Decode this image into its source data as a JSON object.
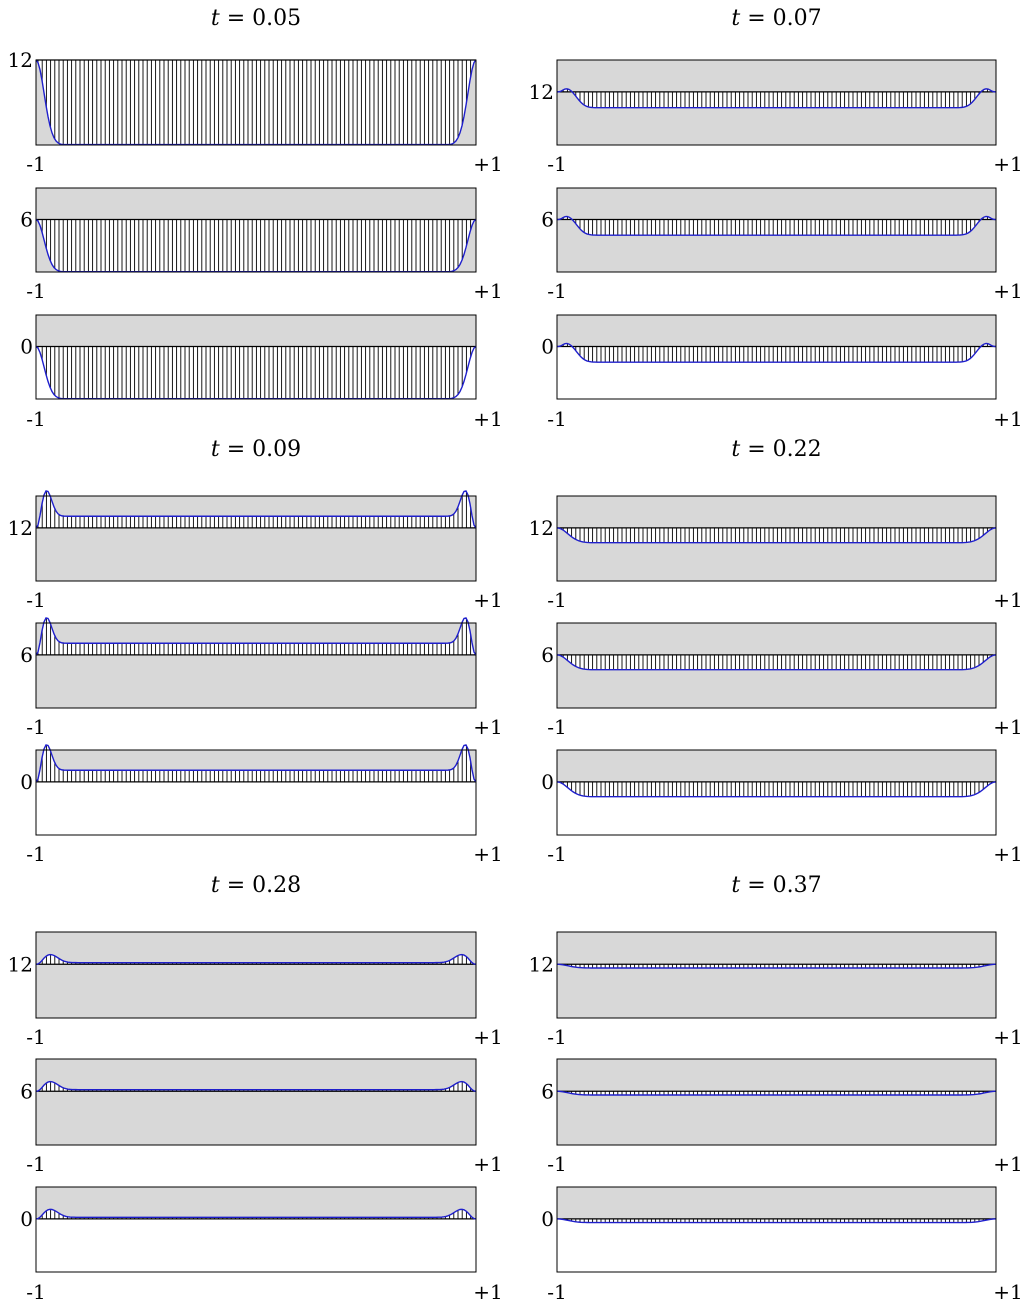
{
  "figure": {
    "var_symbol": "t",
    "var_eq": " = ",
    "x_tick_left": "-1",
    "x_tick_right": "+1"
  },
  "chart_data": [
    {
      "type": "area",
      "title": "t = 0.05",
      "t_label": "0.05",
      "x_range": [
        -1,
        1
      ],
      "edge_width": 0.12,
      "subplots": [
        {
          "baseline": 12,
          "ytick": "12",
          "plateau_offset": -1.0,
          "bump_offset": 0.0,
          "ylim": [
            -1.0,
            0.0
          ]
        },
        {
          "baseline": 6,
          "ytick": "6",
          "plateau_offset": -1.0,
          "bump_offset": 0.0,
          "ylim": [
            -1.0,
            0.6
          ]
        },
        {
          "baseline": 0,
          "ytick": "0",
          "plateau_offset": -1.0,
          "bump_offset": 0.0,
          "ylim": [
            -1.0,
            0.6
          ]
        }
      ]
    },
    {
      "type": "area",
      "title": "t = 0.07",
      "t_label": "0.07",
      "x_range": [
        -1,
        1
      ],
      "edge_width": 0.14,
      "subplots": [
        {
          "baseline": 12,
          "ytick": "12",
          "plateau_offset": -0.3,
          "bump_offset": 0.22,
          "ylim": [
            -1.0,
            0.6
          ]
        },
        {
          "baseline": 6,
          "ytick": "6",
          "plateau_offset": -0.3,
          "bump_offset": 0.22,
          "ylim": [
            -1.0,
            0.6
          ]
        },
        {
          "baseline": 0,
          "ytick": "0",
          "plateau_offset": -0.3,
          "bump_offset": 0.22,
          "ylim": [
            -1.0,
            0.6
          ]
        }
      ]
    },
    {
      "type": "area",
      "title": "t = 0.09",
      "t_label": "0.09",
      "x_range": [
        -1,
        1
      ],
      "edge_width": 0.1,
      "subplots": [
        {
          "baseline": 12,
          "ytick": "12",
          "plateau_offset": 0.22,
          "bump_offset": 0.55,
          "ylim": [
            -1.0,
            0.6
          ]
        },
        {
          "baseline": 6,
          "ytick": "6",
          "plateau_offset": 0.22,
          "bump_offset": 0.55,
          "ylim": [
            -1.0,
            0.6
          ]
        },
        {
          "baseline": 0,
          "ytick": "0",
          "plateau_offset": 0.22,
          "bump_offset": 0.55,
          "ylim": [
            -1.0,
            0.6
          ]
        }
      ]
    },
    {
      "type": "area",
      "title": "t = 0.22",
      "t_label": "0.22",
      "x_range": [
        -1,
        1
      ],
      "edge_width": 0.16,
      "subplots": [
        {
          "baseline": 12,
          "ytick": "12",
          "plateau_offset": -0.28,
          "bump_offset": 0.0,
          "ylim": [
            -1.0,
            0.6
          ]
        },
        {
          "baseline": 6,
          "ytick": "6",
          "plateau_offset": -0.28,
          "bump_offset": 0.0,
          "ylim": [
            -1.0,
            0.6
          ]
        },
        {
          "baseline": 0,
          "ytick": "0",
          "plateau_offset": -0.28,
          "bump_offset": 0.0,
          "ylim": [
            -1.0,
            0.6
          ]
        }
      ]
    },
    {
      "type": "area",
      "title": "t = 0.28",
      "t_label": "0.28",
      "x_range": [
        -1,
        1
      ],
      "edge_width": 0.14,
      "subplots": [
        {
          "baseline": 12,
          "ytick": "12",
          "plateau_offset": 0.03,
          "bump_offset": 0.16,
          "ylim": [
            -1.0,
            0.6
          ]
        },
        {
          "baseline": 6,
          "ytick": "6",
          "plateau_offset": 0.03,
          "bump_offset": 0.16,
          "ylim": [
            -1.0,
            0.6
          ]
        },
        {
          "baseline": 0,
          "ytick": "0",
          "plateau_offset": 0.03,
          "bump_offset": 0.16,
          "ylim": [
            -1.0,
            0.6
          ]
        }
      ]
    },
    {
      "type": "area",
      "title": "t = 0.37",
      "t_label": "0.37",
      "x_range": [
        -1,
        1
      ],
      "edge_width": 0.16,
      "subplots": [
        {
          "baseline": 12,
          "ytick": "12",
          "plateau_offset": -0.07,
          "bump_offset": 0.0,
          "ylim": [
            -1.0,
            0.6
          ]
        },
        {
          "baseline": 6,
          "ytick": "6",
          "plateau_offset": -0.07,
          "bump_offset": 0.0,
          "ylim": [
            -1.0,
            0.6
          ]
        },
        {
          "baseline": 0,
          "ytick": "0",
          "plateau_offset": -0.07,
          "bump_offset": 0.0,
          "ylim": [
            -1.0,
            0.6
          ]
        }
      ]
    }
  ],
  "colors": {
    "background_band": "#d8d8d8",
    "curve": "#1f1fcc",
    "hatch": "#000000",
    "frame": "#000000"
  }
}
